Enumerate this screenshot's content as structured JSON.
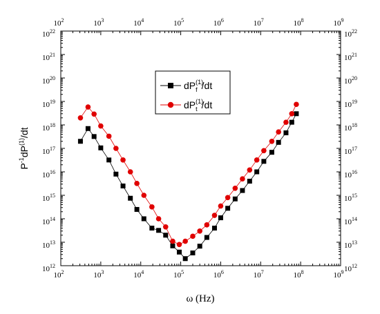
{
  "chart_data": {
    "type": "scatter",
    "xlabel": "ω (Hz)",
    "ylabel": {
      "base": "P",
      "sup1": "-1",
      "mid": "dP",
      "sup2": "(1)",
      "tail": "/dt"
    },
    "xscale": "log",
    "yscale": "log",
    "xlim": [
      100,
      1000000000
    ],
    "ylim": [
      1000000000000,
      10000000000000000000000
    ],
    "x_ticks": [
      {
        "label": "10",
        "exp": "2"
      },
      {
        "label": "10",
        "exp": "3"
      },
      {
        "label": "10",
        "exp": "4"
      },
      {
        "label": "10",
        "exp": "5"
      },
      {
        "label": "10",
        "exp": "6"
      },
      {
        "label": "10",
        "exp": "7"
      },
      {
        "label": "10",
        "exp": "8"
      },
      {
        "label": "10",
        "exp": "9"
      }
    ],
    "y_ticks": [
      {
        "label": "10",
        "exp": "12"
      },
      {
        "label": "10",
        "exp": "13"
      },
      {
        "label": "10",
        "exp": "14"
      },
      {
        "label": "10",
        "exp": "15"
      },
      {
        "label": "10",
        "exp": "16"
      },
      {
        "label": "10",
        "exp": "17"
      },
      {
        "label": "10",
        "exp": "18"
      },
      {
        "label": "10",
        "exp": "19"
      },
      {
        "label": "10",
        "exp": "20"
      },
      {
        "label": "10",
        "exp": "21"
      },
      {
        "label": "10",
        "exp": "22"
      }
    ],
    "x": [
      310,
      480,
      680,
      1000,
      1600,
      2400,
      3600,
      5500,
      8000,
      12000,
      19000,
      28000,
      42000,
      63000,
      92000,
      130000,
      200000,
      300000,
      450000,
      700000,
      1000000,
      1500000,
      2300000,
      3500000,
      5300000,
      8000000,
      12000000,
      19000000,
      28000000,
      43000000,
      60000000,
      78000000
    ],
    "series": [
      {
        "name": {
          "pre": "dP",
          "sub": "f",
          "sup": "(1)",
          "post": "/dt"
        },
        "color": "#000000",
        "marker": "square",
        "values": [
          2e+17,
          7e+17,
          3.2e+17,
          1.05e+17,
          3.2e+16,
          8000000000000000.0,
          2500000000000000.0,
          750000000000000.0,
          250000000000000.0,
          100000000000000.0,
          40000000000000.0,
          32000000000000.0,
          20000000000000.0,
          7000000000000.0,
          3800000000000.0,
          2000000000000.0,
          3500000000000.0,
          6800000000000.0,
          16000000000000.0,
          40000000000000.0,
          110000000000000.0,
          280000000000000.0,
          700000000000000.0,
          1600000000000000.0,
          4000000000000000.0,
          1e+16,
          2.8e+16,
          6.8e+16,
          1.8e+17,
          4.6e+17,
          1.3e+18,
          3e+18
        ]
      },
      {
        "name": {
          "pre": "dP",
          "sub": "t",
          "sup": "(1)",
          "post": "/dt"
        },
        "color": "#e00000",
        "marker": "circle",
        "values": [
          2e+18,
          5.8e+18,
          2.9e+18,
          9e+17,
          3.3e+17,
          1e+17,
          3.2e+16,
          1e+16,
          3200000000000000.0,
          1000000000000000.0,
          320000000000000.0,
          100000000000000.0,
          45000000000000.0,
          11000000000000.0,
          8000000000000.0,
          11000000000000.0,
          18000000000000.0,
          30000000000000.0,
          55000000000000.0,
          140000000000000.0,
          350000000000000.0,
          800000000000000.0,
          2000000000000000.0,
          5000000000000000.0,
          1.2e+16,
          3.2e+16,
          8e+16,
          2e+17,
          5e+17,
          1.3e+18,
          3e+18,
          7.5e+18
        ]
      }
    ],
    "grid": false,
    "legend": "inside-center-upper"
  }
}
